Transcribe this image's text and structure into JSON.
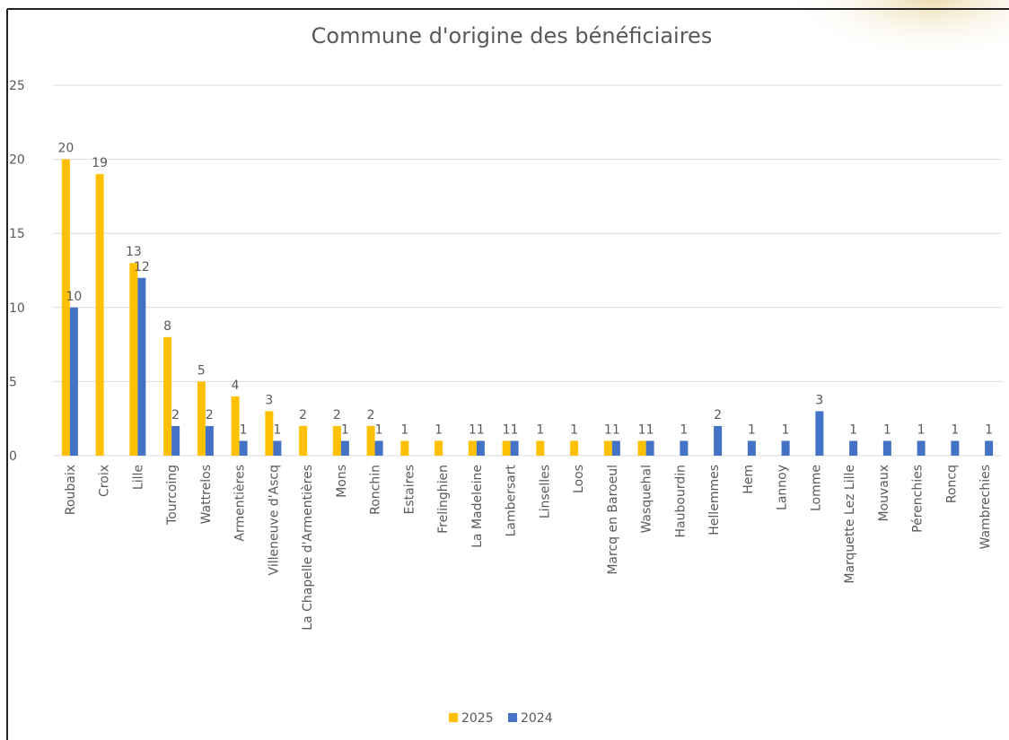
{
  "chart_data": {
    "type": "bar",
    "title": "Commune d'origine des bénéficiaires",
    "categories": [
      "Roubaix",
      "Croix",
      "Lille",
      "Tourcoing",
      "Wattrelos",
      "Armentières",
      "Villeneuve d'Ascq",
      "La Chapelle d'Armentières",
      "Mons",
      "Ronchin",
      "Estaires",
      "Frelinghien",
      "La Madeleine",
      "Lambersart",
      "Linselles",
      "Loos",
      "Marcq en Baroeul",
      "Wasquehal",
      "Haubourdin",
      "Hellemmes",
      "Hem",
      "Lannoy",
      "Lomme",
      "Marquette Lez Lille",
      "Mouvaux",
      "Pérenchies",
      "Roncq",
      "Wambrechies"
    ],
    "series": [
      {
        "name": "2025",
        "color": "#FFC000",
        "values": [
          20,
          19,
          13,
          8,
          5,
          4,
          3,
          2,
          2,
          2,
          1,
          1,
          1,
          1,
          1,
          1,
          1,
          1,
          null,
          null,
          null,
          null,
          null,
          null,
          null,
          null,
          null,
          null
        ]
      },
      {
        "name": "2024",
        "color": "#4472C4",
        "values": [
          10,
          null,
          12,
          2,
          2,
          1,
          1,
          null,
          1,
          1,
          null,
          null,
          1,
          1,
          null,
          null,
          1,
          1,
          1,
          2,
          1,
          1,
          3,
          1,
          1,
          1,
          1,
          1
        ]
      }
    ],
    "ylim": [
      0,
      25
    ],
    "yticks": [
      0,
      5,
      10,
      15,
      20,
      25
    ],
    "grid": true,
    "legend": "bottom"
  }
}
